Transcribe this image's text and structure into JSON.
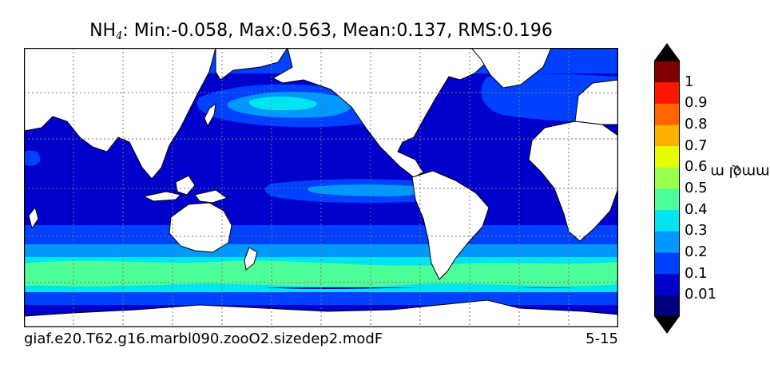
{
  "title": {
    "species_main": "NH",
    "species_sub": "4",
    "stats": ": Min:-0.058, Max:0.563, Mean:0.137, RMS:0.196"
  },
  "footer": {
    "case_name": "giaf.e20.T62.g16.marbl090.zooO2.sizedep2.modF",
    "period": "5-15"
  },
  "colorbar": {
    "levels": [
      "0.01",
      "0.1",
      "0.2",
      "0.3",
      "0.4",
      "0.5",
      "0.6",
      "0.7",
      "0.8",
      "0.9",
      "1"
    ],
    "colors": [
      "#00007f",
      "#0000cd",
      "#0040ff",
      "#0099ff",
      "#00e5f0",
      "#4cff99",
      "#99ff4c",
      "#e6ff00",
      "#ffb000",
      "#ff6400",
      "#ff1600",
      "#800000"
    ],
    "under_color": "#000000",
    "over_color": "#000000",
    "units_base": "mmol m",
    "units_exp": "−3"
  },
  "map": {
    "projection": "global cylindrical, 0-360 longitude",
    "land_color": "#ffffff",
    "graticule": true
  }
}
